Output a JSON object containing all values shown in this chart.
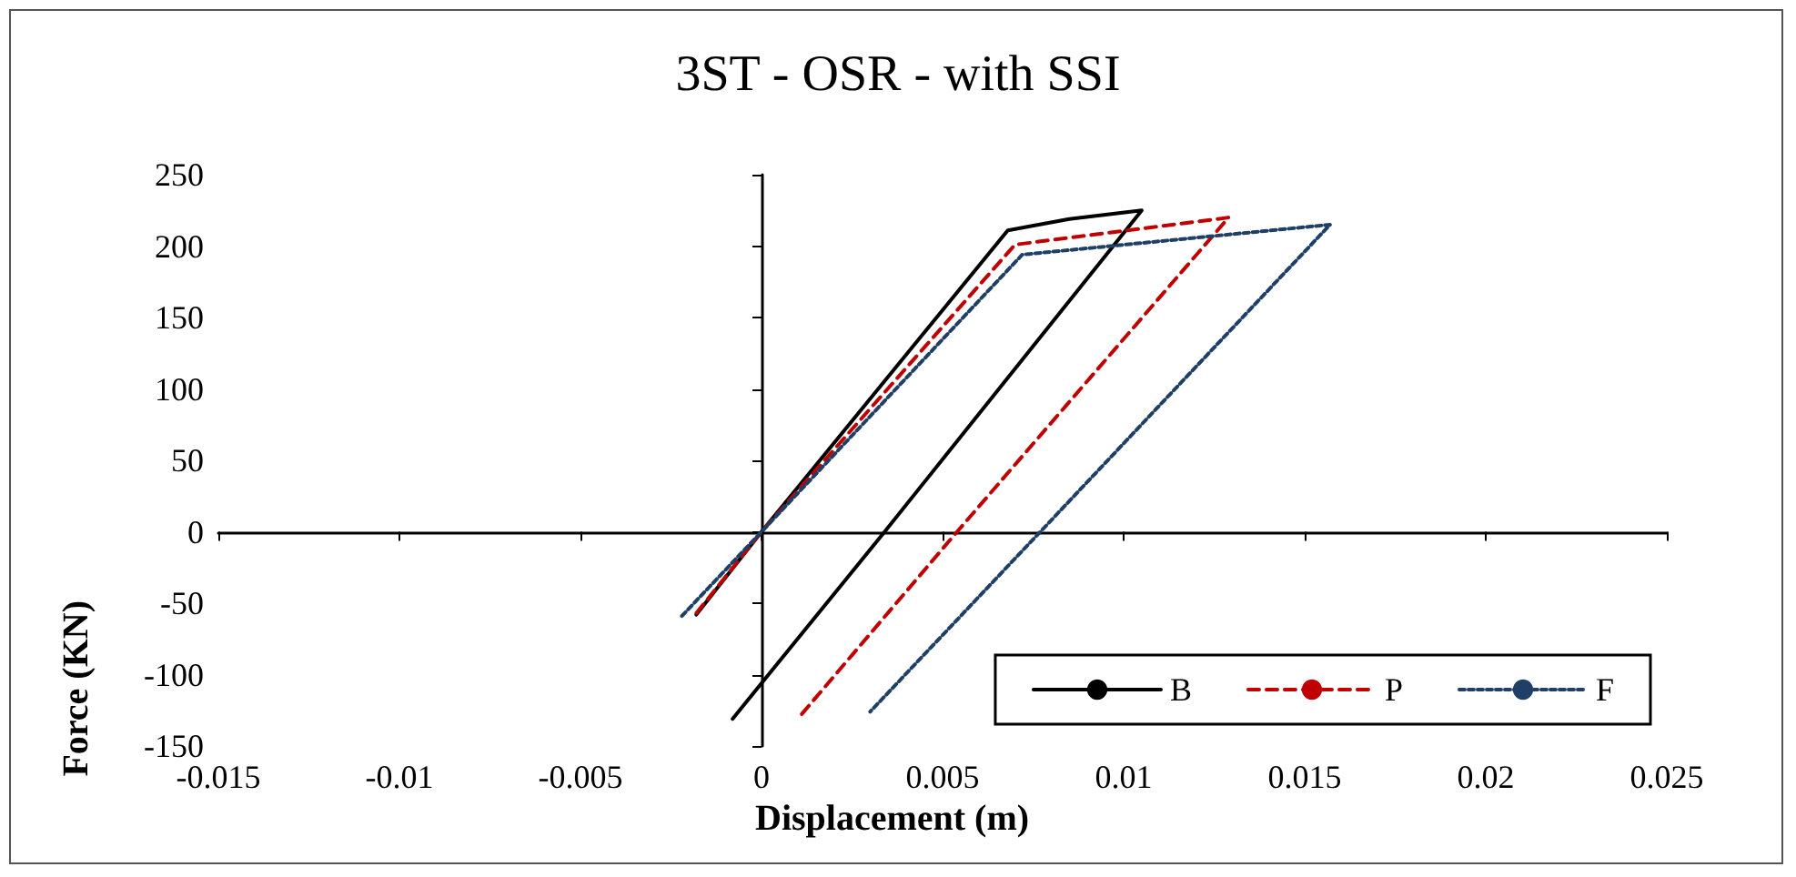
{
  "chart_data": {
    "type": "line",
    "title": "3ST - OSR - with SSI",
    "xlabel": "Displacement (m)",
    "ylabel": "Force (KN)",
    "xlim": [
      -0.015,
      0.025
    ],
    "xticks": [
      -0.015,
      -0.01,
      -0.005,
      0,
      0.005,
      0.01,
      0.015,
      0.02,
      0.025
    ],
    "ylim": [
      -150,
      250
    ],
    "yticks": [
      -150,
      -100,
      -50,
      0,
      50,
      100,
      150,
      200,
      250
    ],
    "legend": "bottom right",
    "marker": "none",
    "series": [
      {
        "name": "B",
        "color": "#000000",
        "line_style": "solid",
        "x": [
          -0.0018,
          0,
          0.0068,
          0.0085,
          0.0105,
          0.0034,
          -0.0008
        ],
        "values": [
          -58,
          0,
          211,
          219,
          225,
          0,
          -131
        ]
      },
      {
        "name": "P",
        "color": "#c00000",
        "line_style": "dashed",
        "x": [
          -0.0018,
          0,
          0.007,
          0.0129,
          0.0054,
          0.0011
        ],
        "values": [
          -57,
          0,
          201,
          220,
          0,
          -128
        ]
      },
      {
        "name": "F",
        "color": "#1f3f66",
        "line_style": "dotted",
        "x": [
          -0.0022,
          0,
          0.0072,
          0.0157,
          0.0077,
          0.003
        ],
        "values": [
          -59,
          0,
          194,
          215,
          0,
          -126
        ]
      }
    ]
  }
}
